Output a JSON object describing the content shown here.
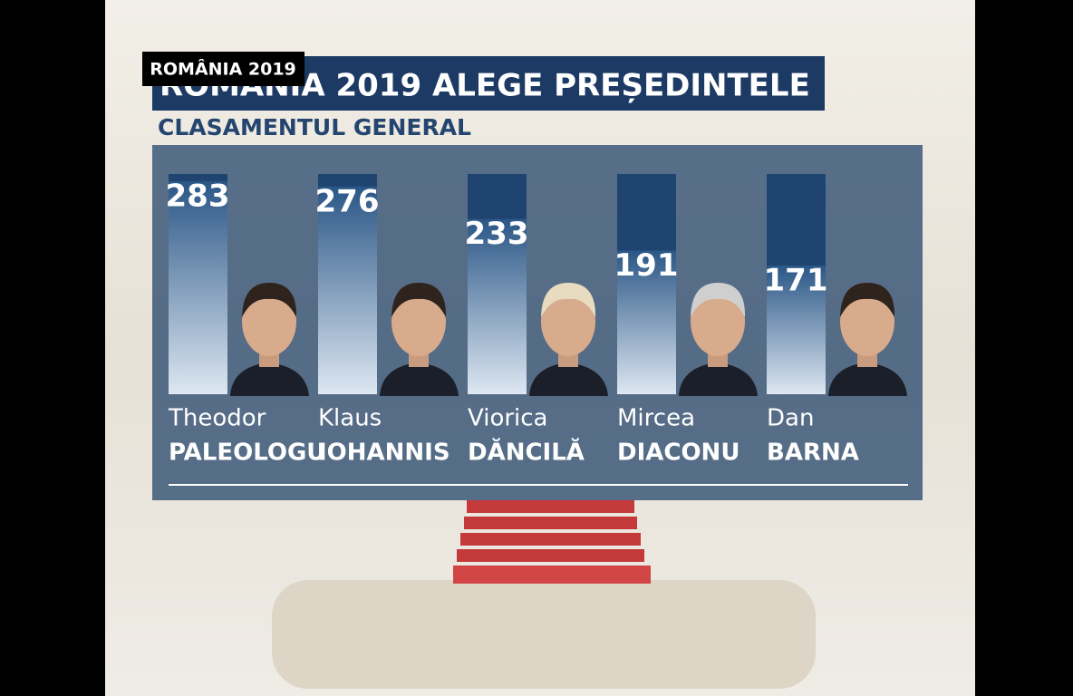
{
  "badge": "ROMÂNIA 2019",
  "chart_data": {
    "type": "bar",
    "title": "ROMÂNIA 2019 ALEGE PREȘEDINTELE",
    "subtitle": "CLASAMENTUL GENERAL",
    "categories": [
      "Theodor",
      "Klaus",
      "Viorica",
      "Mircea",
      "Dan"
    ],
    "category_sublabels": [
      "PALEOLOGU",
      "IOHANNIS",
      "DĂNCILĂ",
      "DIACONU",
      "BARNA"
    ],
    "values": [
      283,
      276,
      233,
      191,
      171
    ],
    "color": "#1f4470"
  }
}
